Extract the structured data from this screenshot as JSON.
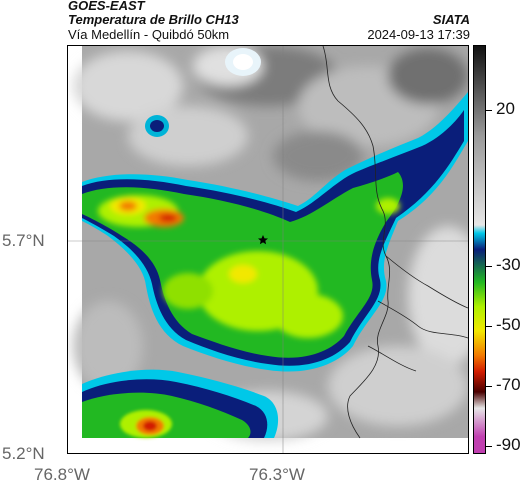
{
  "header": {
    "satellite": "GOES-EAST",
    "product": "Temperatura de Brillo CH13",
    "route": "Vía Medellín - Quibdó 50km",
    "agency": "SIATA",
    "datetime": "2024-09-13 17:39"
  },
  "map": {
    "lat_labels": [
      "5.7°N",
      "5.2°N"
    ],
    "lon_labels": [
      "76.8°W",
      "76.3°W"
    ],
    "marker": "star-marker",
    "gridlines": true
  },
  "colorbar": {
    "labels": [
      "20",
      "-30",
      "-50",
      "-70",
      "-90"
    ],
    "palette": {
      "warm_top": "#111111",
      "mid_gray": "#9a9a9a",
      "light_gray": "#e6e6e6",
      "cyan": "#00c8e8",
      "navy": "#0a1e7a",
      "green": "#22b822",
      "lime": "#aef000",
      "yellow": "#f2e800",
      "orange": "#f27a00",
      "red": "#d21c00",
      "dark_red": "#4a0000",
      "magenta": "#c040b0"
    }
  }
}
